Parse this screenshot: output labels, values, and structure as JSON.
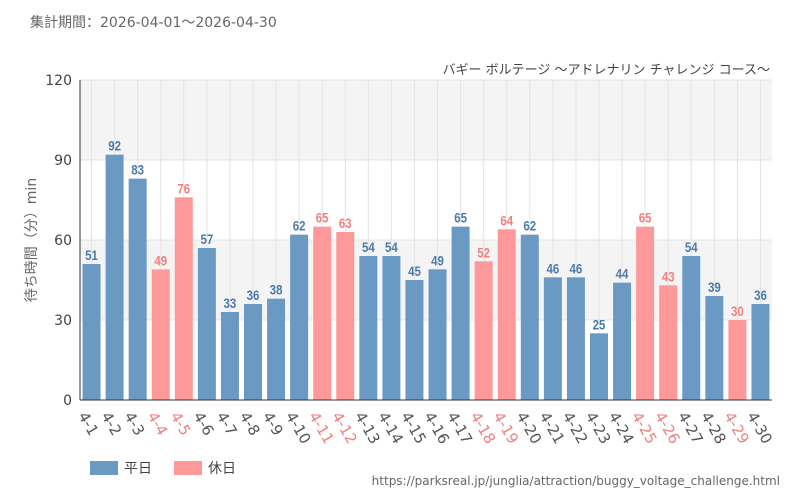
{
  "header": {
    "period_label": "集計期間：",
    "period_value": "2026-04-01～2026-04-30"
  },
  "colors": {
    "weekday": "#6a99c4",
    "holiday": "#ff9898",
    "weekday_label": "#4b7bab",
    "holiday_label": "#f08080",
    "plot_band": "#f4f4f4",
    "grid": "#e4e4e4"
  },
  "legend": {
    "weekday": "平日",
    "holiday": "休日"
  },
  "source": "https://parksreal.jp/junglia/attraction/buggy_voltage_challenge.html",
  "chart_data": {
    "type": "bar",
    "title": "バギー ボルテージ ～アドレナリン チャレンジ コース～",
    "ylabel": "待ち時間（分）min",
    "xlabel": "",
    "ylim": [
      0,
      120
    ],
    "yticks": [
      0,
      30,
      60,
      90,
      120
    ],
    "grid": true,
    "legend_position": "bottom-left",
    "categories": [
      "4-1",
      "4-2",
      "4-3",
      "4-4",
      "4-5",
      "4-6",
      "4-7",
      "4-8",
      "4-9",
      "4-10",
      "4-11",
      "4-12",
      "4-13",
      "4-14",
      "4-15",
      "4-16",
      "4-17",
      "4-18",
      "4-19",
      "4-20",
      "4-21",
      "4-22",
      "4-23",
      "4-24",
      "4-25",
      "4-26",
      "4-27",
      "4-28",
      "4-29",
      "4-30"
    ],
    "values": [
      51,
      92,
      83,
      49,
      76,
      57,
      33,
      36,
      38,
      62,
      65,
      63,
      54,
      54,
      45,
      49,
      65,
      52,
      64,
      62,
      46,
      46,
      25,
      44,
      65,
      43,
      54,
      39,
      30,
      36
    ],
    "day_type": [
      "平日",
      "平日",
      "平日",
      "休日",
      "休日",
      "平日",
      "平日",
      "平日",
      "平日",
      "平日",
      "休日",
      "休日",
      "平日",
      "平日",
      "平日",
      "平日",
      "平日",
      "休日",
      "休日",
      "平日",
      "平日",
      "平日",
      "平日",
      "平日",
      "休日",
      "休日",
      "平日",
      "平日",
      "休日",
      "平日"
    ]
  }
}
